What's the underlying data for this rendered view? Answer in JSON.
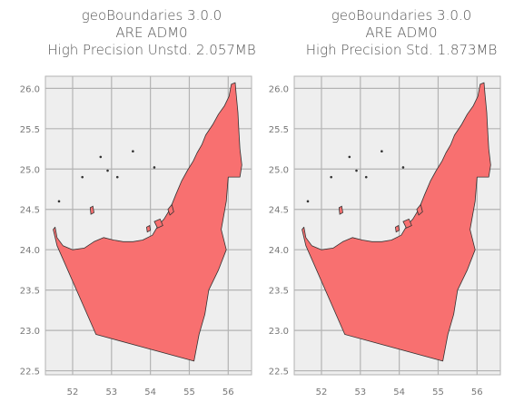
{
  "maps": [
    {
      "title_lines": [
        "geoBoundaries 3.0.0",
        "ARE ADM0",
        "High Precision Unstd. 2.057MB"
      ],
      "xlim": [
        51.3,
        56.6
      ],
      "ylim": [
        22.45,
        26.15
      ],
      "xticks": [
        "52",
        "53",
        "54",
        "55",
        "56"
      ],
      "yticks": [
        "22.5",
        "23.0",
        "23.5",
        "24.0",
        "24.5",
        "25.0",
        "25.5",
        "26.0"
      ]
    },
    {
      "title_lines": [
        "geoBoundaries 3.0.0",
        "ARE ADM0",
        "High Precision Std. 1.873MB"
      ],
      "xlim": [
        51.3,
        56.6
      ],
      "ylim": [
        22.45,
        26.15
      ],
      "xticks": [
        "52",
        "53",
        "54",
        "55",
        "56"
      ],
      "yticks": [
        "22.5",
        "23.0",
        "23.5",
        "24.0",
        "24.5",
        "25.0",
        "25.5",
        "26.0"
      ]
    }
  ],
  "style": {
    "fill_color": "#f87070",
    "edge_color": "#333333",
    "axes_bg": "#eeeeee",
    "grid_color": "#b3b3b3"
  }
}
